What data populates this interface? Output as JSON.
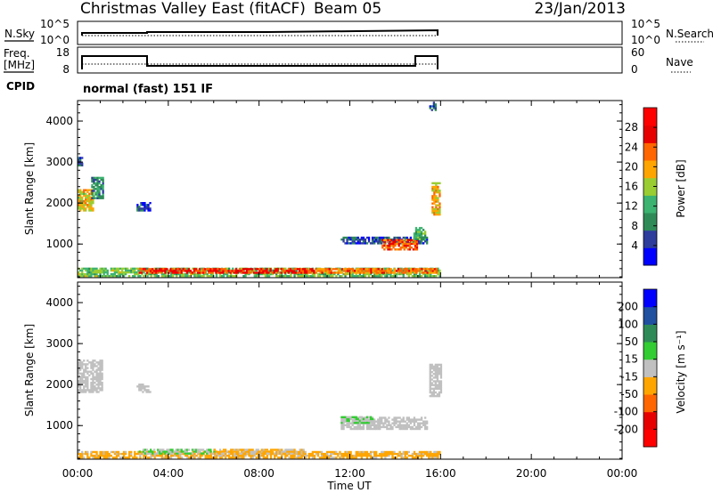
{
  "header": {
    "title": "Christmas Valley East (fitACF)",
    "beam": "Beam 05",
    "date": "23/Jan/2013"
  },
  "nsky_panel": {
    "left_label": "N.Sky",
    "left_ticks": [
      "10^5",
      "10^0"
    ],
    "right_ticks": [
      "10^5",
      "10^0"
    ],
    "right_label": "N.Search"
  },
  "freq_panel": {
    "left_label_1": "Freq.",
    "left_label_2": "[MHz]",
    "left_ticks": [
      "18",
      "8"
    ],
    "right_ticks": [
      "60",
      "0"
    ],
    "right_label": "Nave"
  },
  "cpid": {
    "label": "CPID",
    "value": "normal (fast) 151 IF"
  },
  "colors": {
    "power_scale": [
      "#0000ff",
      "#2e3c9c",
      "#2e8b57",
      "#3cb371",
      "#9acd32",
      "#ffa500",
      "#ff6600",
      "#e60000",
      "#ff0000"
    ],
    "velocity_scale": [
      "#0000ff",
      "#2050a0",
      "#2e8b57",
      "#32cd32",
      "#c0c0c0",
      "#ffa500",
      "#ff6600",
      "#e60000",
      "#ff0000"
    ],
    "ground_scatter": "#b0b0b0"
  },
  "chart_data": [
    {
      "type": "heatmap",
      "name": "power",
      "xlabel": "Time UT",
      "ylabel": "Slant Range [km]",
      "xticks": [
        "00:00",
        "04:00",
        "08:00",
        "12:00",
        "16:00",
        "20:00",
        "00:00"
      ],
      "xlim": [
        0,
        24
      ],
      "ylim": [
        180,
        4500
      ],
      "yticks": [
        "1000",
        "2000",
        "3000",
        "4000"
      ],
      "colorbar": {
        "label": "Power [dB]",
        "ticks": [
          "4",
          "8",
          "12",
          "16",
          "20",
          "24",
          "28"
        ],
        "range": [
          0,
          32
        ]
      },
      "blobs": [
        {
          "t0": 0.0,
          "t1": 16.0,
          "r0": 200,
          "r1": 420,
          "v": 14
        },
        {
          "t0": 2.7,
          "t1": 10.5,
          "r0": 280,
          "r1": 380,
          "v": 26
        },
        {
          "t0": 10.5,
          "t1": 15.8,
          "r0": 280,
          "r1": 380,
          "v": 22
        },
        {
          "t0": 0.0,
          "t1": 0.7,
          "r0": 1800,
          "r1": 2300,
          "v": 18
        },
        {
          "t0": 0.6,
          "t1": 1.1,
          "r0": 2100,
          "r1": 2600,
          "v": 10
        },
        {
          "t0": 0.0,
          "t1": 0.2,
          "r0": 2900,
          "r1": 3100,
          "v": 6
        },
        {
          "t0": 2.6,
          "t1": 3.2,
          "r0": 1800,
          "r1": 2000,
          "v": 6
        },
        {
          "t0": 11.6,
          "t1": 15.4,
          "r0": 1000,
          "r1": 1180,
          "v": 6
        },
        {
          "t0": 13.4,
          "t1": 15.0,
          "r0": 850,
          "r1": 1100,
          "v": 24
        },
        {
          "t0": 14.8,
          "t1": 15.3,
          "r0": 1100,
          "r1": 1400,
          "v": 12
        },
        {
          "t0": 15.6,
          "t1": 16.0,
          "r0": 1700,
          "r1": 2500,
          "v": 20
        },
        {
          "t0": 15.5,
          "t1": 15.8,
          "r0": 4250,
          "r1": 4450,
          "v": 6
        }
      ]
    },
    {
      "type": "heatmap",
      "name": "velocity",
      "xlabel": "Time UT",
      "ylabel": "Slant Range [km]",
      "xticks": [
        "00:00",
        "04:00",
        "08:00",
        "12:00",
        "16:00",
        "20:00",
        "00:00"
      ],
      "xlim": [
        0,
        24
      ],
      "ylim": [
        180,
        4500
      ],
      "yticks": [
        "1000",
        "2000",
        "3000",
        "4000"
      ],
      "colorbar": {
        "label": "Velocity [m s⁻¹]",
        "ticks": [
          "200",
          "100",
          "50",
          "15",
          "-15",
          "-50",
          "-100",
          "-200"
        ],
        "range": [
          -250,
          250
        ]
      },
      "blobs": [
        {
          "t0": 0.0,
          "t1": 16.0,
          "r0": 200,
          "r1": 380,
          "v": -40
        },
        {
          "t0": 2.7,
          "t1": 6.0,
          "r0": 300,
          "r1": 420,
          "v": 30
        },
        {
          "t0": 6.0,
          "t1": 10.0,
          "r0": 300,
          "r1": 420,
          "v": -30
        },
        {
          "t0": 0.0,
          "t1": 1.1,
          "r0": 1800,
          "r1": 2600,
          "v": 0
        },
        {
          "t0": 11.6,
          "t1": 15.4,
          "r0": 900,
          "r1": 1200,
          "v": 0
        },
        {
          "t0": 11.6,
          "t1": 13.0,
          "r0": 1050,
          "r1": 1200,
          "v": 30
        },
        {
          "t0": 15.5,
          "t1": 16.0,
          "r0": 1700,
          "r1": 2500,
          "v": 0
        },
        {
          "t0": 2.6,
          "t1": 3.2,
          "r0": 1800,
          "r1": 2000,
          "v": 0
        }
      ]
    }
  ]
}
